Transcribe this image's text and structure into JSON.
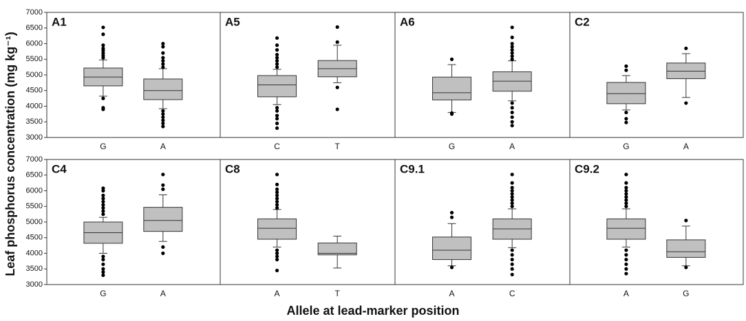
{
  "ylabel": "Leaf phosphorus concentration (mg kg⁻¹)",
  "xlabel": "Allele at lead-marker position",
  "chart_data": [
    {
      "type": "box",
      "title": "A1",
      "categories": [
        "G",
        "A"
      ],
      "color": "#c0c0c0",
      "ylim": [
        3000,
        7000
      ],
      "yticks": [
        3000,
        3500,
        4000,
        4500,
        5000,
        5500,
        6000,
        6500,
        7000
      ],
      "boxes": [
        {
          "whislo": 4320,
          "q1": 4650,
          "median": 4930,
          "q3": 5220,
          "whishi": 5480,
          "fliers": [
            5550,
            5620,
            5700,
            5780,
            5850,
            5950,
            6300,
            6520,
            4250,
            3950,
            3900
          ]
        },
        {
          "whislo": 3920,
          "q1": 4210,
          "median": 4500,
          "q3": 4870,
          "whishi": 5200,
          "fliers": [
            5250,
            5350,
            5450,
            5550,
            5700,
            5900,
            6000,
            3850,
            3750,
            3650,
            3550,
            3450,
            3350
          ]
        }
      ]
    },
    {
      "type": "box",
      "title": "A5",
      "categories": [
        "C",
        "T"
      ],
      "color": "#c0c0c0",
      "ylim": [
        3000,
        7000
      ],
      "yticks": [
        3000,
        3500,
        4000,
        4500,
        5000,
        5500,
        6000,
        6500,
        7000
      ],
      "boxes": [
        {
          "whislo": 4050,
          "q1": 4300,
          "median": 4680,
          "q3": 4980,
          "whishi": 5180,
          "fliers": [
            5250,
            5350,
            5450,
            5550,
            5650,
            5800,
            5950,
            6180,
            3950,
            3850,
            3700,
            3600,
            3450,
            3300
          ]
        },
        {
          "whislo": 4750,
          "q1": 4940,
          "median": 5200,
          "q3": 5460,
          "whishi": 5950,
          "fliers": [
            6050,
            6530,
            4600,
            3900
          ]
        }
      ]
    },
    {
      "type": "box",
      "title": "A6",
      "categories": [
        "G",
        "A"
      ],
      "color": "#c0c0c0",
      "ylim": [
        3000,
        7000
      ],
      "yticks": [
        3000,
        3500,
        4000,
        4500,
        5000,
        5500,
        6000,
        6500,
        7000
      ],
      "boxes": [
        {
          "whislo": 3800,
          "q1": 4200,
          "median": 4430,
          "q3": 4930,
          "whishi": 5330,
          "fliers": [
            5500,
            3780,
            3750
          ]
        },
        {
          "whislo": 4170,
          "q1": 4480,
          "median": 4800,
          "q3": 5100,
          "whishi": 5450,
          "fliers": [
            5500,
            5600,
            5700,
            5800,
            5900,
            6000,
            6200,
            6520,
            4100,
            3950,
            3800,
            3650,
            3500,
            3380
          ]
        }
      ]
    },
    {
      "type": "box",
      "title": "C2",
      "categories": [
        "G",
        "A"
      ],
      "color": "#c0c0c0",
      "ylim": [
        3000,
        7000
      ],
      "yticks": [
        3000,
        3500,
        4000,
        4500,
        5000,
        5500,
        6000,
        6500,
        7000
      ],
      "boxes": [
        {
          "whislo": 3880,
          "q1": 4080,
          "median": 4400,
          "q3": 4760,
          "whishi": 4980,
          "fliers": [
            5280,
            5150,
            3800,
            3600,
            3480
          ]
        },
        {
          "whislo": 4280,
          "q1": 4880,
          "median": 5120,
          "q3": 5380,
          "whishi": 5680,
          "fliers": [
            5850,
            4100
          ]
        }
      ]
    },
    {
      "type": "box",
      "title": "C4",
      "categories": [
        "G",
        "A"
      ],
      "color": "#c0c0c0",
      "ylim": [
        3000,
        7000
      ],
      "yticks": [
        3000,
        3500,
        4000,
        4500,
        5000,
        5500,
        6000,
        6500,
        7000
      ],
      "boxes": [
        {
          "whislo": 4000,
          "q1": 4320,
          "median": 4660,
          "q3": 5000,
          "whishi": 5150,
          "fliers": [
            5250,
            5350,
            5450,
            5550,
            5650,
            5750,
            5850,
            6000,
            6080,
            3900,
            3800,
            3650,
            3500,
            3400,
            3300
          ]
        },
        {
          "whislo": 4380,
          "q1": 4700,
          "median": 5050,
          "q3": 5470,
          "whishi": 5870,
          "fliers": [
            6520,
            6180,
            6050,
            4200,
            4000
          ]
        }
      ]
    },
    {
      "type": "box",
      "title": "C8",
      "categories": [
        "A",
        "T"
      ],
      "color": "#c0c0c0",
      "ylim": [
        3000,
        7000
      ],
      "yticks": [
        3000,
        3500,
        4000,
        4500,
        5000,
        5500,
        6000,
        6500,
        7000
      ],
      "boxes": [
        {
          "whislo": 4200,
          "q1": 4450,
          "median": 4800,
          "q3": 5100,
          "whishi": 5400,
          "fliers": [
            5450,
            5550,
            5650,
            5750,
            5850,
            5950,
            6050,
            6200,
            6520,
            4100,
            4000,
            3900,
            3800,
            3450
          ]
        },
        {
          "whislo": 3530,
          "q1": 3950,
          "median": 4000,
          "q3": 4330,
          "whishi": 4550,
          "fliers": []
        }
      ]
    },
    {
      "type": "box",
      "title": "C9.1",
      "categories": [
        "A",
        "C"
      ],
      "color": "#c0c0c0",
      "ylim": [
        3000,
        7000
      ],
      "yticks": [
        3000,
        3500,
        4000,
        4500,
        5000,
        5500,
        6000,
        6500,
        7000
      ],
      "boxes": [
        {
          "whislo": 3600,
          "q1": 3800,
          "median": 4100,
          "q3": 4520,
          "whishi": 4950,
          "fliers": [
            5300,
            5150,
            3550
          ]
        },
        {
          "whislo": 4180,
          "q1": 4450,
          "median": 4780,
          "q3": 5100,
          "whishi": 5420,
          "fliers": [
            5500,
            5600,
            5700,
            5800,
            5900,
            6000,
            6100,
            6250,
            6520,
            4100,
            3950,
            3800,
            3650,
            3500,
            3320
          ]
        }
      ]
    },
    {
      "type": "box",
      "title": "C9.2",
      "categories": [
        "A",
        "G"
      ],
      "color": "#c0c0c0",
      "ylim": [
        3000,
        7000
      ],
      "yticks": [
        3000,
        3500,
        4000,
        4500,
        5000,
        5500,
        6000,
        6500,
        7000
      ],
      "boxes": [
        {
          "whislo": 4200,
          "q1": 4450,
          "median": 4800,
          "q3": 5100,
          "whishi": 5420,
          "fliers": [
            5500,
            5600,
            5700,
            5800,
            5900,
            6000,
            6100,
            6250,
            6520,
            4100,
            3950,
            3800,
            3650,
            3500,
            3350
          ]
        },
        {
          "whislo": 3600,
          "q1": 3870,
          "median": 4050,
          "q3": 4430,
          "whishi": 4870,
          "fliers": [
            5050,
            3550
          ]
        }
      ]
    }
  ]
}
